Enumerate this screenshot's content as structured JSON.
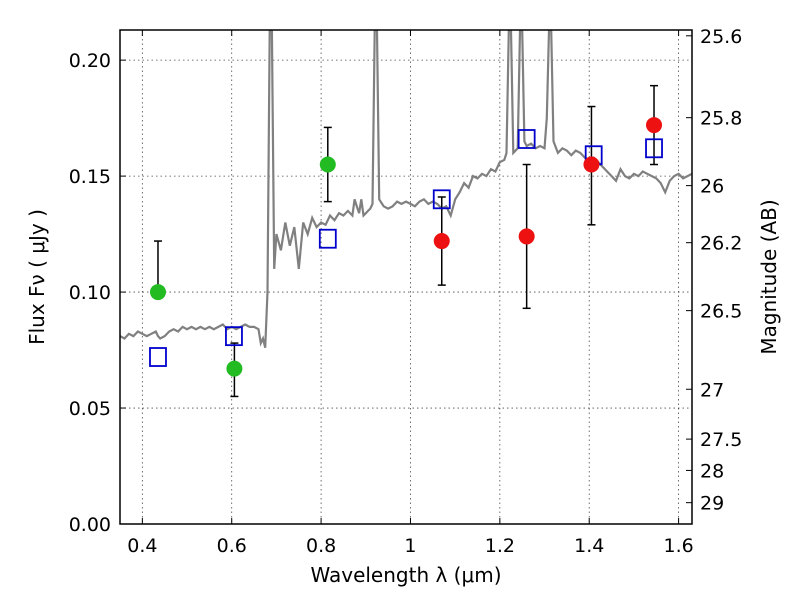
{
  "chart_data": {
    "type": "scatter",
    "xlabel": "Wavelength  λ (μm)",
    "ylabel": "Flux  Fν  ( μJy )",
    "ylabel_right": "Magnitude (AB)",
    "xlim": [
      0.35,
      1.63
    ],
    "ylim": [
      0.0,
      0.213
    ],
    "grid": true,
    "x_ticks": [
      0.4,
      0.6,
      0.8,
      1.0,
      1.2,
      1.4,
      1.6
    ],
    "x_tick_labels": [
      "0.4",
      "0.6",
      "0.8",
      "1",
      "1.2",
      "1.4",
      "1.6"
    ],
    "y_ticks": [
      0.0,
      0.05,
      0.1,
      0.15,
      0.2
    ],
    "y_tick_labels": [
      "0.00",
      "0.05",
      "0.10",
      "0.15",
      "0.20"
    ],
    "right_ticks": [
      {
        "label": "25.6",
        "flux": 0.2105
      },
      {
        "label": "25.8",
        "flux": 0.1752
      },
      {
        "label": "26",
        "flux": 0.1459
      },
      {
        "label": "26.2",
        "flux": 0.1213
      },
      {
        "label": "26.5",
        "flux": 0.092
      },
      {
        "label": "27",
        "flux": 0.0581
      },
      {
        "label": "27.5",
        "flux": 0.0366
      },
      {
        "label": "28",
        "flux": 0.0231
      },
      {
        "label": "29",
        "flux": 0.0092
      }
    ],
    "series": [
      {
        "kind": "spectrum",
        "color": "#808080",
        "points": [
          [
            0.35,
            0.081
          ],
          [
            0.36,
            0.08
          ],
          [
            0.37,
            0.082
          ],
          [
            0.38,
            0.081
          ],
          [
            0.39,
            0.083
          ],
          [
            0.4,
            0.082
          ],
          [
            0.41,
            0.081
          ],
          [
            0.42,
            0.082
          ],
          [
            0.43,
            0.083
          ],
          [
            0.435,
            0.081
          ],
          [
            0.44,
            0.08
          ],
          [
            0.45,
            0.081
          ],
          [
            0.46,
            0.083
          ],
          [
            0.47,
            0.084
          ],
          [
            0.48,
            0.083
          ],
          [
            0.49,
            0.085
          ],
          [
            0.5,
            0.084
          ],
          [
            0.51,
            0.085
          ],
          [
            0.52,
            0.084
          ],
          [
            0.53,
            0.085
          ],
          [
            0.54,
            0.084
          ],
          [
            0.55,
            0.085
          ],
          [
            0.56,
            0.084
          ],
          [
            0.57,
            0.085
          ],
          [
            0.58,
            0.086
          ],
          [
            0.59,
            0.084
          ],
          [
            0.6,
            0.085
          ],
          [
            0.61,
            0.084
          ],
          [
            0.62,
            0.085
          ],
          [
            0.63,
            0.086
          ],
          [
            0.64,
            0.085
          ],
          [
            0.65,
            0.085
          ],
          [
            0.66,
            0.084
          ],
          [
            0.665,
            0.078
          ],
          [
            0.67,
            0.08
          ],
          [
            0.675,
            0.076
          ],
          [
            0.68,
            0.1
          ],
          [
            0.685,
            0.213
          ],
          [
            0.69,
            0.213
          ],
          [
            0.695,
            0.11
          ],
          [
            0.7,
            0.125
          ],
          [
            0.71,
            0.118
          ],
          [
            0.72,
            0.13
          ],
          [
            0.73,
            0.12
          ],
          [
            0.74,
            0.128
          ],
          [
            0.75,
            0.11
          ],
          [
            0.76,
            0.13
          ],
          [
            0.77,
            0.125
          ],
          [
            0.78,
            0.132
          ],
          [
            0.79,
            0.128
          ],
          [
            0.8,
            0.13
          ],
          [
            0.81,
            0.129
          ],
          [
            0.82,
            0.133
          ],
          [
            0.83,
            0.131
          ],
          [
            0.84,
            0.134
          ],
          [
            0.85,
            0.133
          ],
          [
            0.86,
            0.135
          ],
          [
            0.87,
            0.133
          ],
          [
            0.875,
            0.14
          ],
          [
            0.88,
            0.137
          ],
          [
            0.885,
            0.134
          ],
          [
            0.89,
            0.14
          ],
          [
            0.895,
            0.133
          ],
          [
            0.9,
            0.134
          ],
          [
            0.905,
            0.135
          ],
          [
            0.91,
            0.136
          ],
          [
            0.915,
            0.138
          ],
          [
            0.92,
            0.213
          ],
          [
            0.925,
            0.213
          ],
          [
            0.93,
            0.14
          ],
          [
            0.94,
            0.137
          ],
          [
            0.95,
            0.136
          ],
          [
            0.96,
            0.137
          ],
          [
            0.97,
            0.139
          ],
          [
            0.98,
            0.138
          ],
          [
            0.99,
            0.139
          ],
          [
            1.0,
            0.138
          ],
          [
            1.01,
            0.137
          ],
          [
            1.02,
            0.139
          ],
          [
            1.03,
            0.14
          ],
          [
            1.04,
            0.138
          ],
          [
            1.05,
            0.139
          ],
          [
            1.06,
            0.138
          ],
          [
            1.07,
            0.136
          ],
          [
            1.08,
            0.137
          ],
          [
            1.09,
            0.133
          ],
          [
            1.1,
            0.14
          ],
          [
            1.11,
            0.143
          ],
          [
            1.12,
            0.147
          ],
          [
            1.13,
            0.145
          ],
          [
            1.14,
            0.15
          ],
          [
            1.15,
            0.149
          ],
          [
            1.16,
            0.151
          ],
          [
            1.17,
            0.15
          ],
          [
            1.18,
            0.153
          ],
          [
            1.19,
            0.152
          ],
          [
            1.2,
            0.156
          ],
          [
            1.21,
            0.157
          ],
          [
            1.215,
            0.16
          ],
          [
            1.22,
            0.213
          ],
          [
            1.225,
            0.213
          ],
          [
            1.23,
            0.16
          ],
          [
            1.24,
            0.162
          ],
          [
            1.245,
            0.213
          ],
          [
            1.25,
            0.213
          ],
          [
            1.255,
            0.165
          ],
          [
            1.26,
            0.163
          ],
          [
            1.27,
            0.164
          ],
          [
            1.28,
            0.162
          ],
          [
            1.29,
            0.163
          ],
          [
            1.3,
            0.162
          ],
          [
            1.305,
            0.175
          ],
          [
            1.31,
            0.213
          ],
          [
            1.315,
            0.213
          ],
          [
            1.32,
            0.165
          ],
          [
            1.33,
            0.16
          ],
          [
            1.34,
            0.162
          ],
          [
            1.35,
            0.161
          ],
          [
            1.36,
            0.159
          ],
          [
            1.37,
            0.161
          ],
          [
            1.38,
            0.16
          ],
          [
            1.39,
            0.158
          ],
          [
            1.4,
            0.157
          ],
          [
            1.41,
            0.158
          ],
          [
            1.42,
            0.156
          ],
          [
            1.43,
            0.154
          ],
          [
            1.44,
            0.152
          ],
          [
            1.45,
            0.15
          ],
          [
            1.46,
            0.148
          ],
          [
            1.47,
            0.153
          ],
          [
            1.48,
            0.15
          ],
          [
            1.49,
            0.149
          ],
          [
            1.5,
            0.151
          ],
          [
            1.51,
            0.15
          ],
          [
            1.52,
            0.152
          ],
          [
            1.53,
            0.151
          ],
          [
            1.54,
            0.15
          ],
          [
            1.55,
            0.149
          ],
          [
            1.56,
            0.147
          ],
          [
            1.57,
            0.143
          ],
          [
            1.58,
            0.148
          ],
          [
            1.59,
            0.15
          ],
          [
            1.6,
            0.151
          ],
          [
            1.61,
            0.149
          ],
          [
            1.62,
            0.15
          ],
          [
            1.63,
            0.151
          ]
        ]
      },
      {
        "kind": "model",
        "marker": "square",
        "color": "#0000cc",
        "points": [
          [
            0.435,
            0.072
          ],
          [
            0.605,
            0.081
          ],
          [
            0.815,
            0.123
          ],
          [
            1.07,
            0.14
          ],
          [
            1.26,
            0.166
          ],
          [
            1.41,
            0.159
          ],
          [
            1.545,
            0.162
          ]
        ]
      },
      {
        "kind": "observed",
        "marker": "circle",
        "color": "#22bb22",
        "points": [
          {
            "x": 0.435,
            "y": 0.1,
            "low": 0.1,
            "high": 0.122
          },
          {
            "x": 0.606,
            "y": 0.067,
            "low": 0.055,
            "high": 0.078
          },
          {
            "x": 0.815,
            "y": 0.155,
            "low": 0.139,
            "high": 0.171
          }
        ]
      },
      {
        "kind": "observed",
        "marker": "circle",
        "color": "#ee1111",
        "points": [
          {
            "x": 1.07,
            "y": 0.122,
            "low": 0.103,
            "high": 0.141
          },
          {
            "x": 1.26,
            "y": 0.124,
            "low": 0.093,
            "high": 0.155
          },
          {
            "x": 1.405,
            "y": 0.155,
            "low": 0.129,
            "high": 0.18
          },
          {
            "x": 1.545,
            "y": 0.172,
            "low": 0.155,
            "high": 0.189
          }
        ]
      }
    ]
  }
}
